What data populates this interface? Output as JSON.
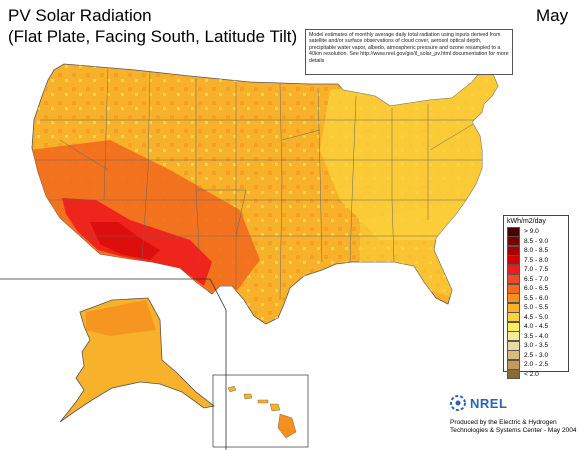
{
  "map": {
    "title_line1": "PV Solar Radiation",
    "title_line2": "(Flat Plate, Facing South, Latitude Tilt)",
    "month": "May",
    "note": "Model estimates of monthly average daily total radiation using inputs derived from satellite and/or surface observations of cloud cover, aerosol optical depth, precipitable water vapor, albedo, atmospheric pressure and ozone resampled to a 40km resolution.  See http://www.nrel.gov/gis/il_solar_pv.html documentation for more details",
    "legend": {
      "title": "kWh/m2/day",
      "items": [
        {
          "label": "> 9.0",
          "color": "#4d0000"
        },
        {
          "label": "8.5 - 9.0",
          "color": "#7a0000"
        },
        {
          "label": "8.0 - 8.5",
          "color": "#a60000"
        },
        {
          "label": "7.5 - 8.0",
          "color": "#d10000"
        },
        {
          "label": "7.0 - 7.5",
          "color": "#ee1c1c"
        },
        {
          "label": "6.5 - 7.0",
          "color": "#f24a28"
        },
        {
          "label": "6.0 - 6.5",
          "color": "#f26b1d"
        },
        {
          "label": "5.5 - 6.0",
          "color": "#f5901e"
        },
        {
          "label": "5.0 - 5.5",
          "color": "#f8b12a"
        },
        {
          "label": "4.5 - 5.0",
          "color": "#fbd23b"
        },
        {
          "label": "4.0 - 4.5",
          "color": "#fcec5e"
        },
        {
          "label": "3.5 - 4.0",
          "color": "#f6eb9a"
        },
        {
          "label": "3.0 - 3.5",
          "color": "#ebd9a4"
        },
        {
          "label": "2.5 - 3.0",
          "color": "#d9bb7a"
        },
        {
          "label": "2.0 - 2.5",
          "color": "#c49a57"
        },
        {
          "label": "< 2.0",
          "color": "#8c6a33"
        }
      ]
    },
    "logo": "NREL",
    "credit": "Produced by the Electric & Hydrogen Technologies & Systems Center - May 2004",
    "colors": {
      "base": "#f8b12a",
      "northeast": "#fbd23b",
      "southwest": "#f26b1d",
      "hotspot": "#ee1c1c",
      "lines": "#555555"
    }
  }
}
